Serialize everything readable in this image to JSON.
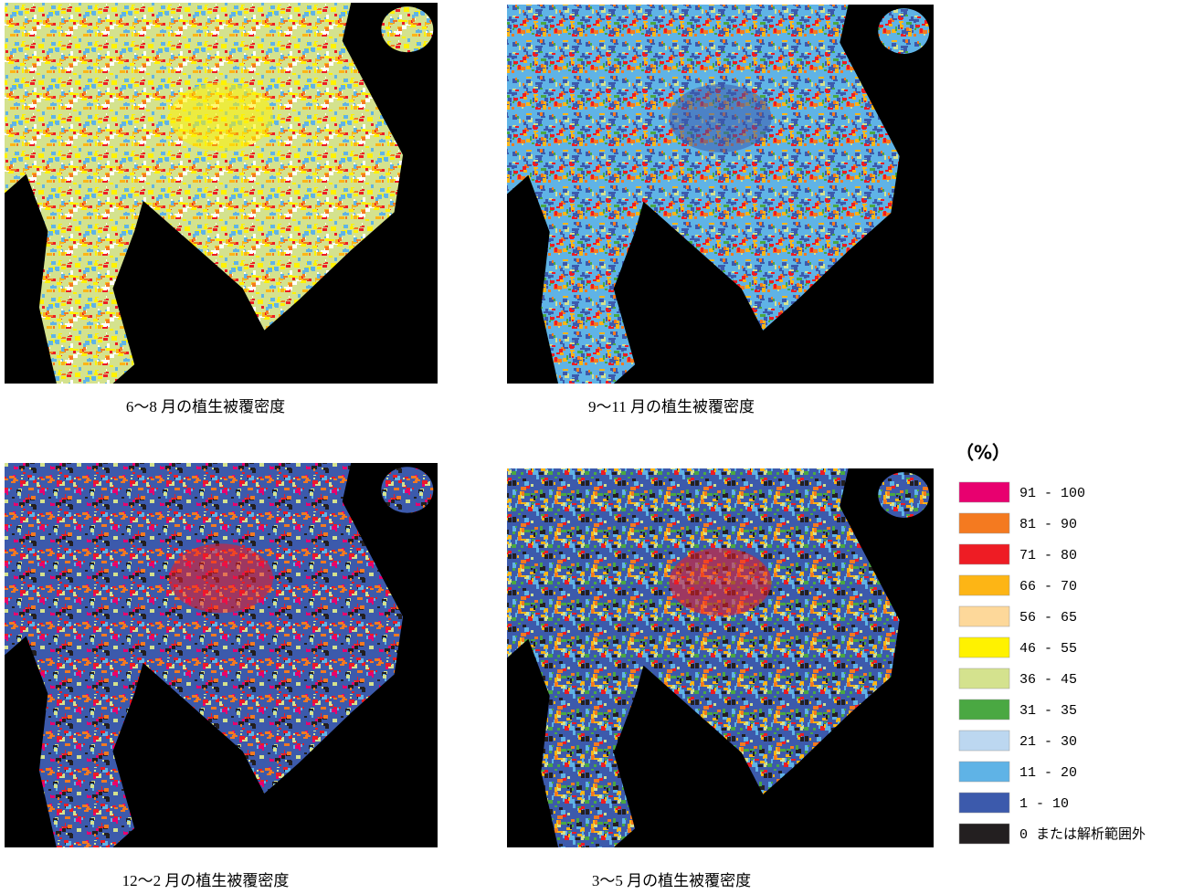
{
  "panels": [
    {
      "caption": "6〜8 月の植生被覆密度"
    },
    {
      "caption": "9〜11 月の植生被覆密度"
    },
    {
      "caption": "12〜2 月の植生被覆密度"
    },
    {
      "caption": "3〜5 月の植生被覆密度"
    }
  ],
  "legend": {
    "title": "（%）",
    "items": [
      {
        "label": "91 - 100",
        "color": "#e8006f"
      },
      {
        "label": "81 - 90",
        "color": "#f47a20"
      },
      {
        "label": "71 - 80",
        "color": "#ee1c24"
      },
      {
        "label": "66 - 70",
        "color": "#fdb515"
      },
      {
        "label": "56 - 65",
        "color": "#fdd89a"
      },
      {
        "label": "46 - 55",
        "color": "#fff200"
      },
      {
        "label": "36 - 45",
        "color": "#d4e28e"
      },
      {
        "label": "31 - 35",
        "color": "#4aa842"
      },
      {
        "label": "21 - 30",
        "color": "#bcd7f0"
      },
      {
        "label": "11 - 20",
        "color": "#5fb3e6"
      },
      {
        "label": "1 - 10",
        "color": "#3c5aac"
      },
      {
        "label": "0 または解析範囲外",
        "color": "#231f20"
      }
    ]
  }
}
